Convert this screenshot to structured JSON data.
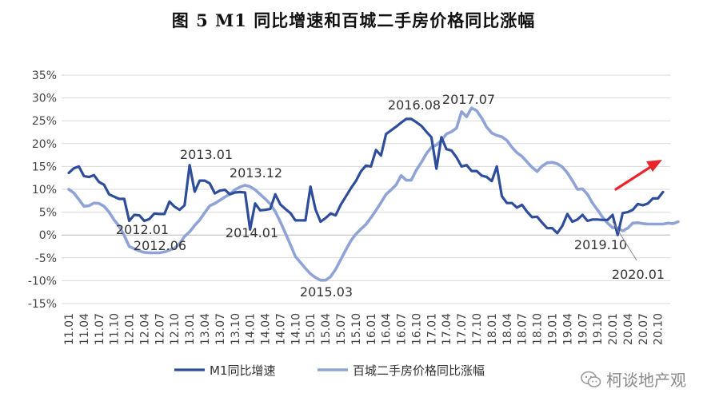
{
  "title": "图 5 M1 同比增速和百城二手房价格同比涨幅",
  "watermark": "柯谈地产观",
  "colors": {
    "m1": "#2E4D9A",
    "house": "#8FA3D6",
    "arrow": "#E8252B",
    "grid": "#D9D9D9"
  },
  "chart_data": {
    "type": "line",
    "title": "图 5 M1 同比增速和百城二手房价格同比涨幅",
    "ylim": [
      -15,
      35
    ],
    "yticks": [
      "35%",
      "30%",
      "25%",
      "20%",
      "15%",
      "10%",
      "5%",
      "0%",
      "-5%",
      "-10%",
      "-15%"
    ],
    "x_tick_labels": [
      "11.01",
      "11.04",
      "11.07",
      "11.10",
      "12.01",
      "12.04",
      "12.07",
      "12.10",
      "13.01",
      "13.04",
      "13.07",
      "13.10",
      "14.01",
      "14.04",
      "14.07",
      "14.10",
      "15.01",
      "15.04",
      "15.07",
      "15.10",
      "16.01",
      "16.04",
      "16.07",
      "16.10",
      "17.01",
      "17.04",
      "17.07",
      "17.10",
      "18.01",
      "18.04",
      "18.07",
      "18.10",
      "19.01",
      "19.04",
      "19.07",
      "19.10",
      "20.01",
      "20.04",
      "20.07",
      "20.10"
    ],
    "grid": true,
    "legend_position": "bottom",
    "series": [
      {
        "name": "M1同比增速",
        "values": [
          13.6,
          14.6,
          15.0,
          12.9,
          12.7,
          13.1,
          11.6,
          11.0,
          8.9,
          8.4,
          7.9,
          7.9,
          3.1,
          4.4,
          4.3,
          3.1,
          3.5,
          4.7,
          4.6,
          4.6,
          7.3,
          6.2,
          5.5,
          6.5,
          15.3,
          9.5,
          11.9,
          11.9,
          11.3,
          9.1,
          9.7,
          9.9,
          8.9,
          9.3,
          9.4,
          9.3,
          1.2,
          6.9,
          5.4,
          5.5,
          5.7,
          8.9,
          6.7,
          5.7,
          4.8,
          3.2,
          3.2,
          3.2,
          10.6,
          5.6,
          2.9,
          3.7,
          4.7,
          4.3,
          6.6,
          8.4,
          10.2,
          11.8,
          13.9,
          15.2,
          15.0,
          18.6,
          17.4,
          22.1,
          22.9,
          23.7,
          24.6,
          25.4,
          25.4,
          24.7,
          23.9,
          22.6,
          21.4,
          14.5,
          21.4,
          18.8,
          18.5,
          17.0,
          15.0,
          15.3,
          14.0,
          14.0,
          13.0,
          12.7,
          11.8,
          15.0,
          8.5,
          7.0,
          7.0,
          6.0,
          6.6,
          5.1,
          3.9,
          4.0,
          2.7,
          1.5,
          1.5,
          0.4,
          2.0,
          4.6,
          2.9,
          3.4,
          4.4,
          3.1,
          3.4,
          3.4,
          3.3,
          3.3,
          4.4,
          0.0,
          4.8,
          5.0,
          5.5,
          6.8,
          6.5,
          6.9,
          8.0,
          8.0,
          9.4
        ]
      },
      {
        "name": "百城二手房价格同比涨幅",
        "values": [
          10.0,
          9.2,
          7.8,
          6.3,
          6.4,
          7.0,
          6.9,
          6.3,
          5.0,
          3.3,
          1.9,
          -0.1,
          -2.5,
          -3.0,
          -3.5,
          -3.8,
          -3.9,
          -3.9,
          -3.9,
          -3.7,
          -3.3,
          -2.9,
          -1.9,
          -0.3,
          0.7,
          2.1,
          3.3,
          4.9,
          6.4,
          6.9,
          7.6,
          8.3,
          9.0,
          9.9,
          10.5,
          10.9,
          10.6,
          9.9,
          8.9,
          7.9,
          6.8,
          5.1,
          2.9,
          0.4,
          -2.1,
          -4.7,
          -6.0,
          -7.3,
          -8.5,
          -9.3,
          -9.9,
          -9.9,
          -9.1,
          -7.5,
          -5.4,
          -3.3,
          -1.3,
          0.2,
          1.3,
          2.3,
          3.8,
          5.4,
          7.1,
          8.9,
          9.9,
          11.0,
          13.0,
          12.0,
          12.0,
          14.2,
          15.9,
          17.8,
          19.2,
          19.7,
          20.7,
          22.1,
          22.6,
          23.4,
          27.0,
          25.9,
          27.8,
          27.2,
          25.6,
          23.6,
          22.3,
          21.8,
          21.5,
          20.7,
          19.2,
          18.0,
          17.2,
          16.0,
          14.8,
          13.9,
          15.1,
          15.8,
          15.9,
          15.6,
          14.9,
          13.6,
          11.9,
          10.0,
          10.1,
          8.9,
          7.0,
          5.5,
          3.9,
          2.6,
          1.6,
          1.5,
          0.9,
          1.5,
          2.6,
          2.7,
          2.5,
          2.4,
          2.4,
          2.4,
          2.4,
          2.6,
          2.5,
          2.9
        ]
      }
    ],
    "annotations": [
      "2012.01",
      "2012.06",
      "2013.01",
      "2013.12",
      "2014.01",
      "2015.03",
      "2016.08",
      "2017.07",
      "2019.10",
      "2020.01"
    ]
  }
}
